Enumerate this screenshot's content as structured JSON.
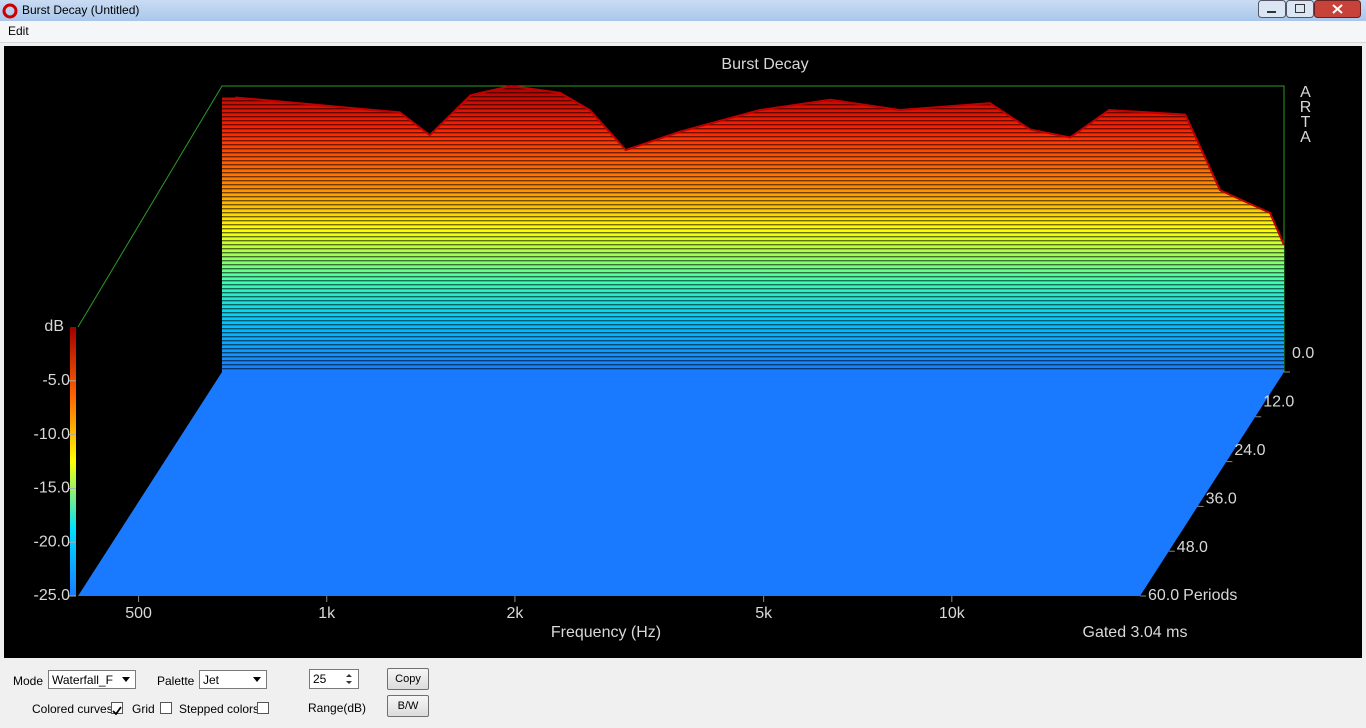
{
  "window": {
    "title": "Burst Decay  (Untitled)"
  },
  "menu": [
    "Edit"
  ],
  "chart_data": {
    "type": "waterfall",
    "title": "Burst Decay",
    "watermark": "ARTA",
    "x_label": "Frequency (Hz)",
    "y_label": "dB",
    "z_label": "Periods",
    "annotation": "Gated 3.04 ms",
    "xscale": "log",
    "xlim": [
      400,
      20000
    ],
    "xticks": [
      500,
      {
        "value": 1000,
        "label": "1k"
      },
      {
        "value": 2000,
        "label": "2k"
      },
      {
        "value": 5000,
        "label": "5k"
      },
      {
        "value": 10000,
        "label": "10k"
      }
    ],
    "ylim": [
      -25,
      0
    ],
    "yticks": [
      {
        "value": -5,
        "label": "-5.0"
      },
      {
        "value": -10,
        "label": "-10.0"
      },
      {
        "value": -15,
        "label": "-15.0"
      },
      {
        "value": -20,
        "label": "-20.0"
      },
      {
        "value": -25,
        "label": "-25.0"
      }
    ],
    "zlim": [
      0,
      60
    ],
    "zticks": [
      {
        "value": 0,
        "label": "0.0"
      },
      {
        "value": 12,
        "label": "12.0"
      },
      {
        "value": 24,
        "label": "24.0"
      },
      {
        "value": 36,
        "label": "36.0"
      },
      {
        "value": 48,
        "label": "48.0"
      },
      {
        "value": 60,
        "label": "60.0"
      }
    ],
    "x": [
      420,
      530,
      770,
      860,
      1000,
      1160,
      1390,
      1550,
      1770,
      2160,
      2900,
      3760,
      4860,
      6770,
      7850,
      9100,
      10500,
      13900,
      15800,
      19000,
      20000
    ],
    "values": [
      -1.0,
      -1.5,
      -2.3,
      -4.3,
      -0.8,
      0,
      -0.6,
      -2.1,
      -5.6,
      -4.0,
      -2.1,
      -1.2,
      -2.1,
      -1.5,
      -3.8,
      -4.5,
      -2.1,
      -2.5,
      -9.1,
      -11.1,
      -13.9
    ]
  },
  "controls": {
    "mode": {
      "label": "Mode",
      "value": "Waterfall_F"
    },
    "palette": {
      "label": "Palette",
      "value": "Jet"
    },
    "range": {
      "value": 25,
      "label": "Range(dB)"
    },
    "buttons": [
      "Copy",
      "B/W"
    ],
    "checkboxes": [
      {
        "label": "Colored curves",
        "checked": true
      },
      {
        "label": "Grid",
        "checked": false
      },
      {
        "label": "Stepped colors",
        "checked": false
      }
    ]
  }
}
